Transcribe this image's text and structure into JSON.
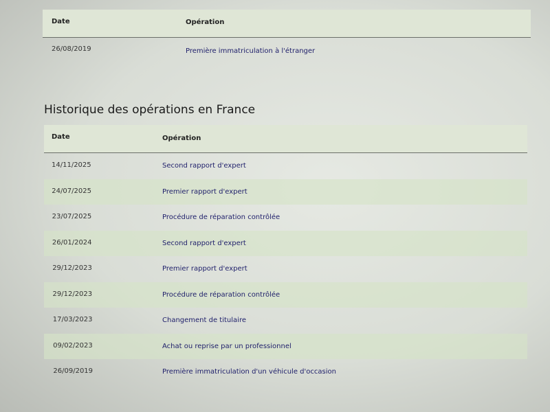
{
  "foreign_table": {
    "headers": {
      "date": "Date",
      "operation": "Opération"
    },
    "rows": [
      {
        "date": "26/08/2019",
        "operation": "Première immatriculation à l'étranger"
      }
    ]
  },
  "france_section": {
    "title": "Historique des opérations en France",
    "headers": {
      "date": "Date",
      "operation": "Opération"
    },
    "rows": [
      {
        "date": "14/11/2025",
        "operation": "Second rapport d'expert"
      },
      {
        "date": "24/07/2025",
        "operation": "Premier rapport d'expert"
      },
      {
        "date": "23/07/2025",
        "operation": "Procédure de réparation contrôlée"
      },
      {
        "date": "26/01/2024",
        "operation": "Second rapport d'expert"
      },
      {
        "date": "29/12/2023",
        "operation": "Premier rapport d'expert"
      },
      {
        "date": "29/12/2023",
        "operation": "Procédure de réparation contrôlée"
      },
      {
        "date": "17/03/2023",
        "operation": "Changement de titulaire"
      },
      {
        "date": "09/02/2023",
        "operation": "Achat ou reprise par un professionnel"
      },
      {
        "date": "26/09/2019",
        "operation": "Première immatriculation d'un véhicule d'occasion"
      }
    ]
  },
  "colors": {
    "header_bg": "#dfe6d6",
    "row_alt_bg": "#d6e4c8",
    "operation_text": "#1e1e6a"
  }
}
